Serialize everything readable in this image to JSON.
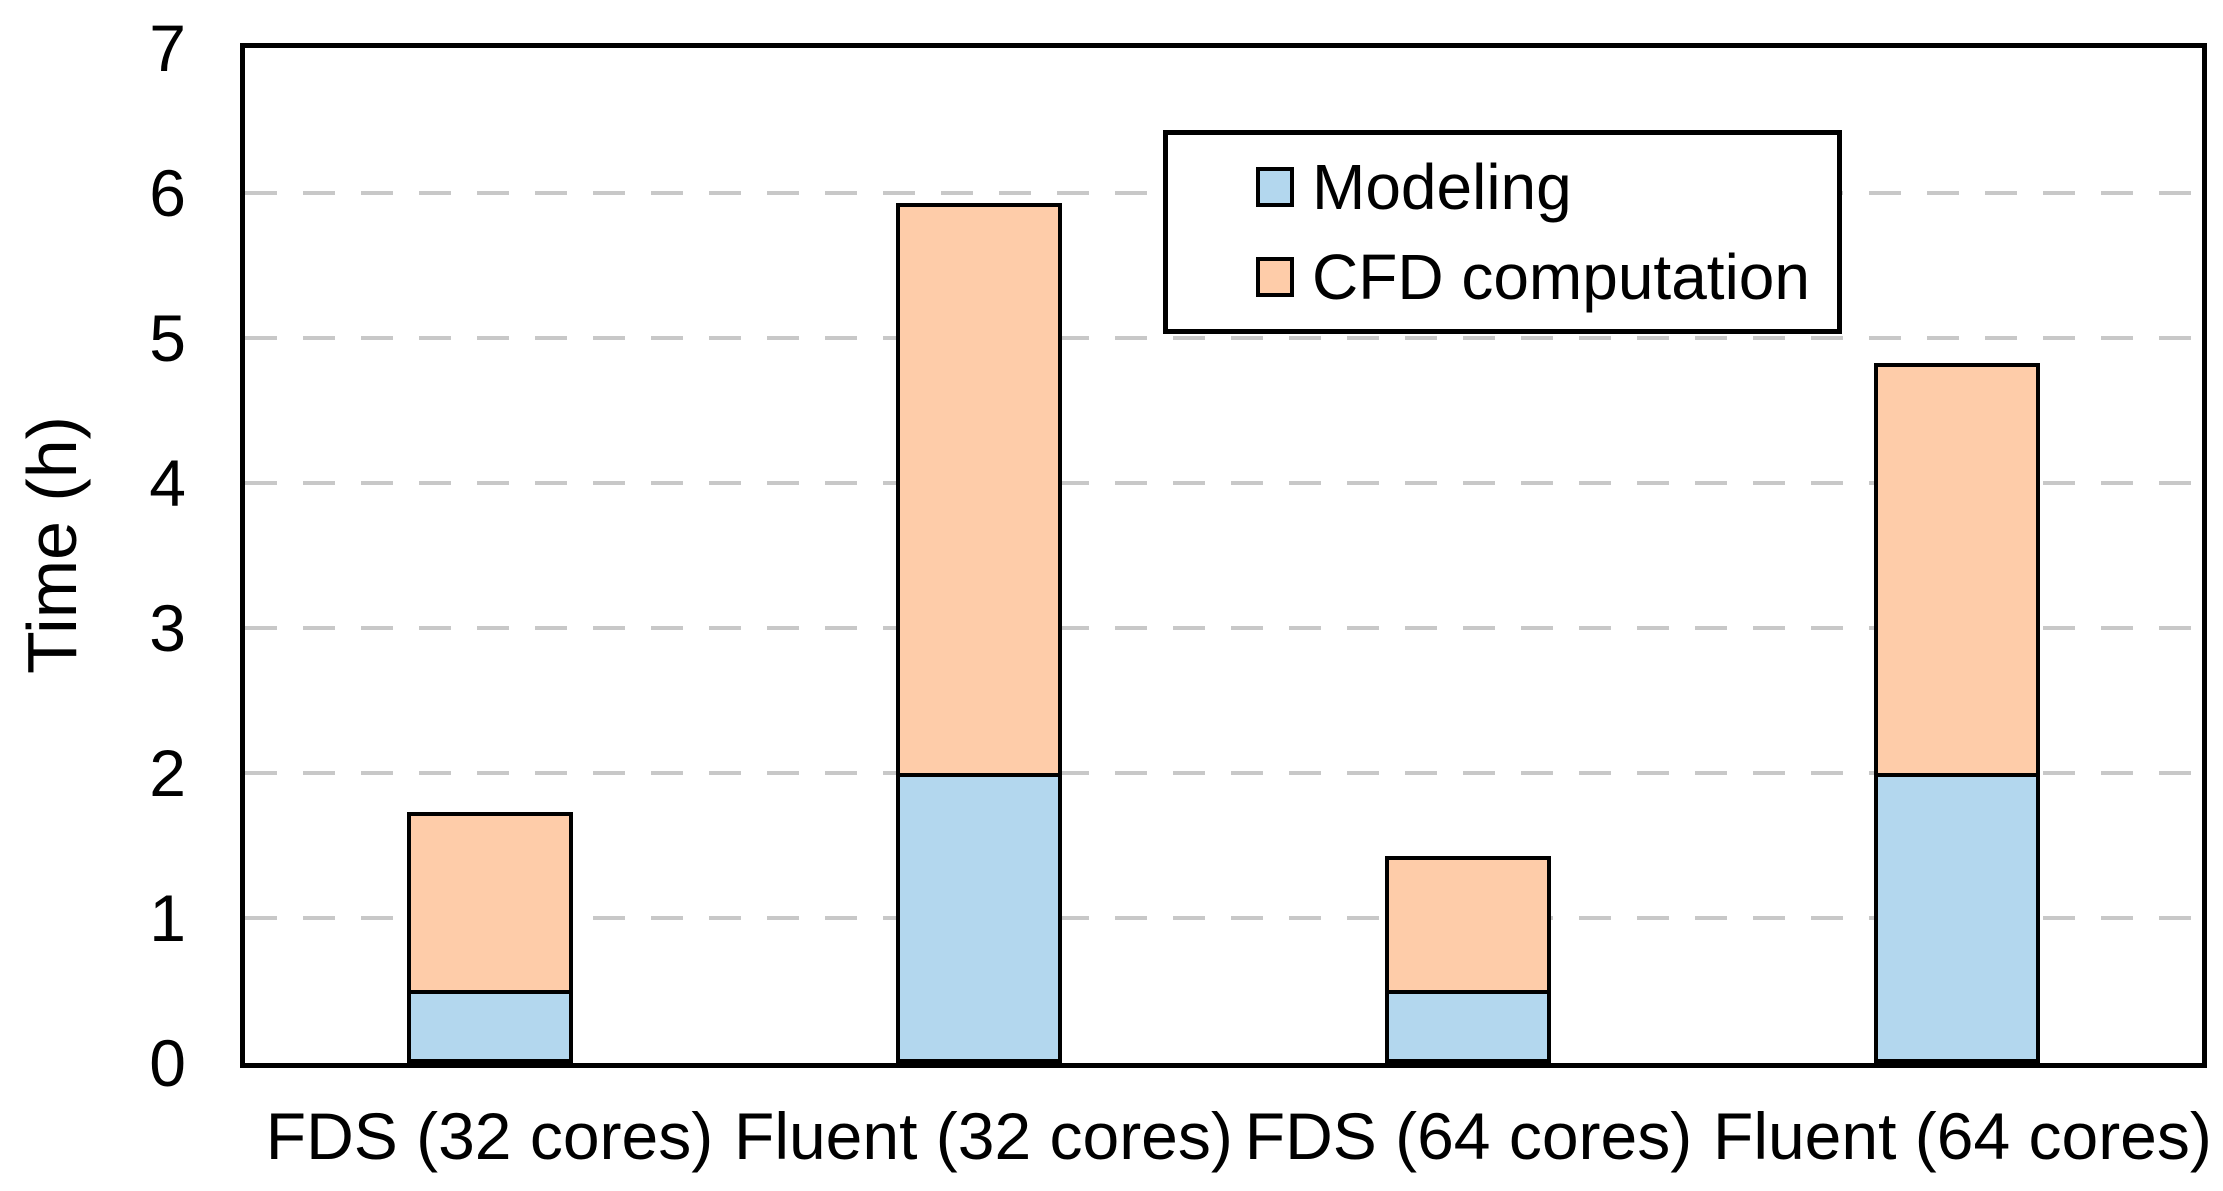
{
  "chart_data": {
    "type": "bar",
    "stacked": true,
    "title": "",
    "xlabel": "",
    "ylabel": "Time (h)",
    "ylim": [
      0,
      7
    ],
    "yticks": [
      0,
      1,
      2,
      3,
      4,
      5,
      6,
      7
    ],
    "grid": "horizontal dashed gridlines at each integer",
    "legend_position": "inside top, center-right, boxed",
    "categories": [
      "FDS (32 cores)",
      "Fluent (32 cores)",
      "FDS (64 cores)",
      "Fluent (64 cores)"
    ],
    "series": [
      {
        "name": "Modeling",
        "color": "#B3D7EE",
        "values": [
          0.5,
          2.0,
          0.5,
          2.0
        ]
      },
      {
        "name": "CFD computation",
        "color": "#FECCA9",
        "values": [
          1.2,
          3.9,
          0.9,
          2.8
        ]
      }
    ],
    "stack_totals": [
      1.7,
      5.9,
      1.4,
      4.8
    ],
    "colors": {
      "frame": "#000000",
      "bar_edge": "#000000",
      "gridline": "#C8C8C8",
      "background": "#FFFFFF",
      "text": "#000000"
    }
  }
}
